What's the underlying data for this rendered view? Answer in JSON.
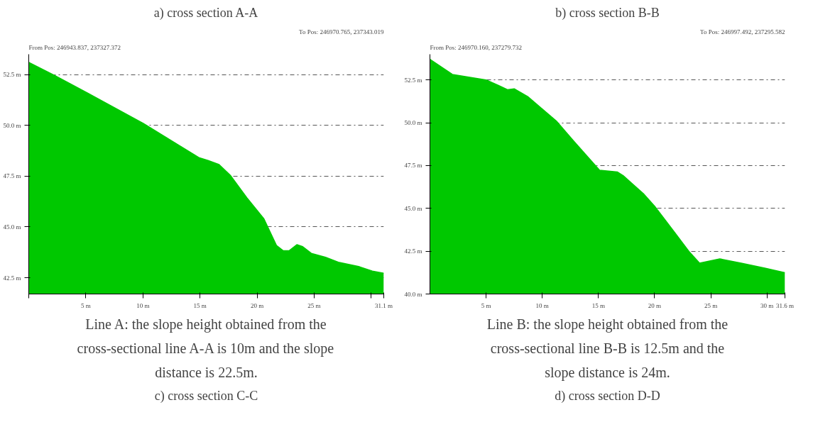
{
  "chart_data": [
    {
      "type": "area",
      "title": "a) cross section A-A",
      "annotations": [
        "From Pos: 246943.837, 237327.372",
        "To Pos: 246970.765, 237343.019",
        "Line A: the slope height obtained from the cross-sectional line A-A is 10m and the slope distance is 22.5m."
      ],
      "series": [
        {
          "color": "#00c800",
          "x": [
            0,
            2.33,
            5.15,
            10.05,
            14.95,
            15.7,
            16.67,
            17.65,
            19.1,
            20.6,
            21.7,
            22.3,
            22.8,
            23.5,
            24.0,
            24.75,
            26.0,
            27.2,
            28.9,
            30.1,
            31.1
          ],
          "values": [
            53.1,
            52.44,
            51.59,
            50.09,
            48.4,
            48.27,
            48.07,
            47.55,
            46.44,
            45.4,
            44.09,
            43.83,
            43.83,
            44.13,
            44.03,
            43.7,
            43.51,
            43.25,
            43.05,
            42.83,
            42.72
          ]
        }
      ],
      "xlim": [
        0,
        31.1
      ],
      "ylim": [
        41.7,
        53.5
      ],
      "xticks": [
        {
          "value": 0,
          "label": null
        },
        {
          "value": 5,
          "label": "5 m"
        },
        {
          "value": 10,
          "label": "10 m"
        },
        {
          "value": 15,
          "label": "15 m"
        },
        {
          "value": 20,
          "label": "20 m"
        },
        {
          "value": 25,
          "label": "25 m"
        },
        {
          "value": 30,
          "label": null
        },
        {
          "value": 31.1,
          "label": "31.1 m"
        }
      ],
      "yticks": [
        {
          "value": 42.5,
          "label": "42.5 m"
        },
        {
          "value": 45,
          "label": "45.0 m"
        },
        {
          "value": 47.5,
          "label": "47.5 m"
        },
        {
          "value": 50,
          "label": "50.0 m"
        },
        {
          "value": 52.5,
          "label": "52.5 m"
        }
      ],
      "grid": "y"
    },
    {
      "type": "area",
      "title": "b) cross section B-B",
      "annotations": [
        "From Pos: 246970.160, 237279.732",
        "To Pos: 246997.492, 237295.582",
        "Line B: the slope height obtained from the cross-sectional line B-B is 12.5m and the slope distance is 24m."
      ],
      "series": [
        {
          "color": "#00c800",
          "x": [
            0,
            2.0,
            5,
            6.1,
            6.9,
            7.5,
            8.7,
            11.3,
            12.8,
            15.1,
            16.7,
            17.2,
            19.0,
            20.0,
            21.6,
            23.1,
            24.0,
            25.8,
            27.7,
            29.8,
            31.6
          ],
          "values": [
            53.7,
            52.82,
            52.5,
            52.18,
            51.93,
            51.98,
            51.53,
            50.07,
            48.93,
            47.23,
            47.12,
            46.91,
            45.86,
            45.13,
            43.75,
            42.45,
            41.8,
            42.05,
            41.8,
            41.51,
            41.24
          ]
        }
      ],
      "xlim": [
        0,
        31.6
      ],
      "ylim": [
        40,
        54
      ],
      "xticks": [
        {
          "value": 5,
          "label": "5 m"
        },
        {
          "value": 10,
          "label": "10 m"
        },
        {
          "value": 15,
          "label": "15 m"
        },
        {
          "value": 20,
          "label": "20 m"
        },
        {
          "value": 25,
          "label": "25 m"
        },
        {
          "value": 30,
          "label": "30 m"
        },
        {
          "value": 31.6,
          "label": "31.6 m"
        }
      ],
      "yticks": [
        {
          "value": 40,
          "label": "40.0 m"
        },
        {
          "value": 42.5,
          "label": "42.5 m"
        },
        {
          "value": 45,
          "label": "45.0 m"
        },
        {
          "value": 47.5,
          "label": "47.5 m"
        },
        {
          "value": 50,
          "label": "50.0 m"
        },
        {
          "value": 52.5,
          "label": "52.5 m"
        }
      ],
      "grid": "y"
    },
    {
      "type": "other",
      "title": "c) cross section C-C"
    },
    {
      "type": "other",
      "title": "d) cross section D-D"
    }
  ]
}
